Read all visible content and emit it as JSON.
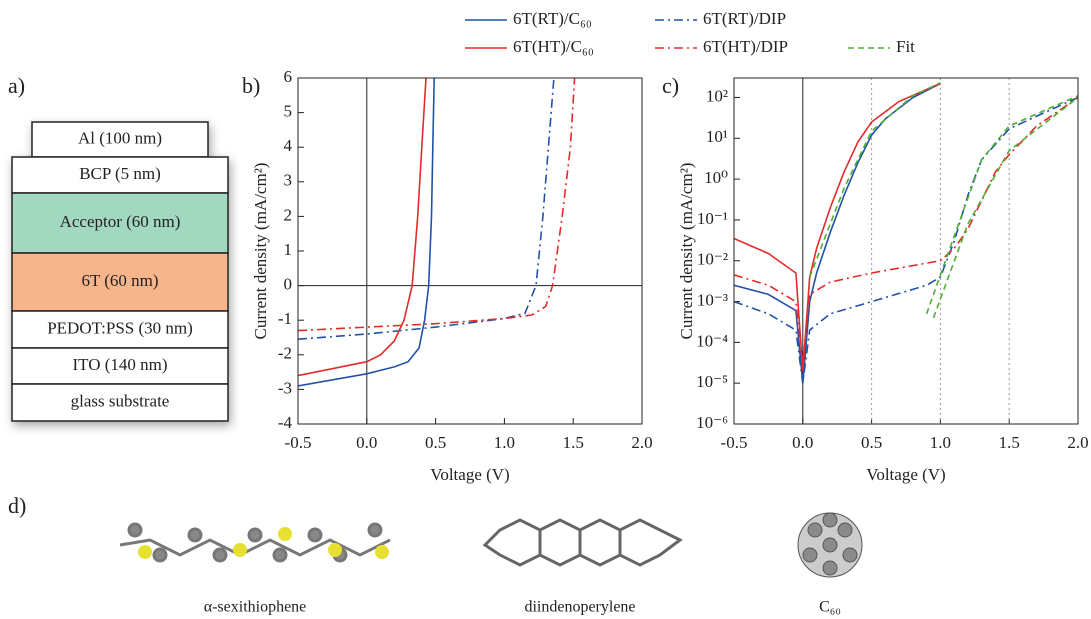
{
  "panel_labels": [
    "a)",
    "b)",
    "c)",
    "d)"
  ],
  "layers": [
    {
      "label": "Al (100 nm)",
      "color": "#ffffff"
    },
    {
      "label": "BCP (5 nm)",
      "color": "#ffffff"
    },
    {
      "label": "Acceptor (60 nm)",
      "color": "#a3d8c0"
    },
    {
      "label": "6T (60 nm)",
      "color": "#f7b58c"
    },
    {
      "label": "PEDOT:PSS (30 nm)",
      "color": "#ffffff"
    },
    {
      "label": "ITO (140 nm)",
      "color": "#ffffff"
    },
    {
      "label": "glass substrate",
      "color": "#ffffff"
    }
  ],
  "molecules": [
    "α-sexithiophene",
    "diindenoperylene",
    "C₆₀"
  ],
  "chart_data": [
    {
      "type": "line",
      "log_y": false,
      "zero_lines": true,
      "x_label": "Voltage (V)",
      "y_label": "Current density (mA/cm²)",
      "xlim": [
        -0.5,
        2.0
      ],
      "xticks": [
        -0.5,
        {
          "value": 0,
          "label": "0.0"
        },
        0.5,
        {
          "value": 1,
          "label": "1.0"
        },
        1.5,
        {
          "value": 2,
          "label": "2.0"
        }
      ],
      "ylim": [
        -4,
        6
      ],
      "yticks": [
        -4,
        -3,
        -2,
        -1,
        0,
        1,
        2,
        3,
        4,
        5,
        6
      ],
      "series": [
        {
          "name": "6T(RT)/C₆₀",
          "color": "#2152a8",
          "dash": "solid",
          "x": [
            -0.5,
            0,
            0.2,
            0.3,
            0.38,
            0.42,
            0.45,
            0.47,
            0.48,
            0.49
          ],
          "values": [
            -2.9,
            -2.55,
            -2.35,
            -2.2,
            -1.8,
            -1.0,
            0,
            2,
            4,
            6
          ]
        },
        {
          "name": "6T(RT)/DIP",
          "color": "#2152a8",
          "dash": "dashdot",
          "x": [
            -0.5,
            0,
            0.5,
            1.0,
            1.15,
            1.2,
            1.23,
            1.28,
            1.32,
            1.36
          ],
          "values": [
            -1.55,
            -1.4,
            -1.2,
            -0.95,
            -0.8,
            -0.3,
            0,
            2,
            4,
            6
          ]
        },
        {
          "name": "6T(HT)/C₆₀",
          "color": "#e52a2a",
          "dash": "solid",
          "x": [
            -0.5,
            0,
            0.1,
            0.2,
            0.27,
            0.33,
            0.37,
            0.4,
            0.43
          ],
          "values": [
            -2.6,
            -2.2,
            -2.0,
            -1.6,
            -1.0,
            0,
            2,
            4,
            6
          ]
        },
        {
          "name": "6T(HT)/DIP",
          "color": "#e52a2a",
          "dash": "dashdot",
          "x": [
            -0.5,
            0,
            0.5,
            1.0,
            1.2,
            1.3,
            1.35,
            1.42,
            1.48,
            1.51
          ],
          "values": [
            -1.3,
            -1.2,
            -1.1,
            -0.95,
            -0.85,
            -0.6,
            0,
            2,
            4,
            6
          ]
        }
      ]
    },
    {
      "type": "line",
      "log_y": true,
      "zero_lines": true,
      "x_grid": true,
      "x_label": "Voltage (V)",
      "y_label": "Current density (mA/cm²)",
      "xlim": [
        -0.5,
        2.0
      ],
      "xticks": [
        -0.5,
        {
          "value": 0,
          "label": "0.0"
        },
        0.5,
        {
          "value": 1,
          "label": "1.0"
        },
        1.5,
        {
          "value": 2,
          "label": "2.0"
        }
      ],
      "ylim": [
        1e-06,
        300
      ],
      "yticks": [
        {
          "value": 1e-06,
          "label": "10⁻⁶"
        },
        {
          "value": 1e-05,
          "label": "10⁻⁵"
        },
        {
          "value": 0.0001,
          "label": "10⁻⁴"
        },
        {
          "value": 0.001,
          "label": "10⁻³"
        },
        {
          "value": 0.01,
          "label": "10⁻²"
        },
        {
          "value": 0.1,
          "label": "10⁻¹"
        },
        {
          "value": 1,
          "label": "10⁰"
        },
        {
          "value": 10,
          "label": "10¹"
        },
        {
          "value": 100,
          "label": "10²"
        }
      ],
      "series": [
        {
          "name": "6T(RT)/C₆₀",
          "color": "#2152a8",
          "dash": "solid",
          "x": [
            -0.5,
            -0.25,
            -0.05,
            0,
            0.05,
            0.1,
            0.2,
            0.3,
            0.4,
            0.5,
            0.6,
            0.8,
            1.0
          ],
          "values": [
            0.0025,
            0.0015,
            0.0006,
            1e-05,
            0.001,
            0.005,
            0.05,
            0.4,
            2.5,
            12,
            30,
            100,
            220
          ]
        },
        {
          "name": "6T(RT)/DIP",
          "color": "#2152a8",
          "dash": "dashdot",
          "x": [
            -0.5,
            -0.25,
            -0.05,
            0,
            0.05,
            0.2,
            0.5,
            0.9,
            1.0,
            1.1,
            1.2,
            1.3,
            1.5,
            1.7,
            2.0
          ],
          "values": [
            0.001,
            0.0005,
            0.0002,
            1e-05,
            0.0002,
            0.0005,
            0.001,
            0.0025,
            0.004,
            0.03,
            0.4,
            3,
            17,
            35,
            100
          ]
        },
        {
          "name": "6T(HT)/C₆₀",
          "color": "#e52a2a",
          "dash": "solid",
          "x": [
            -0.5,
            -0.25,
            -0.05,
            0,
            0.05,
            0.1,
            0.2,
            0.3,
            0.4,
            0.5,
            0.7,
            1.0
          ],
          "values": [
            0.035,
            0.015,
            0.005,
            2e-05,
            0.004,
            0.02,
            0.2,
            1.5,
            8,
            25,
            80,
            220
          ]
        },
        {
          "name": "6T(HT)/DIP",
          "color": "#e52a2a",
          "dash": "dashdot",
          "x": [
            -0.5,
            -0.25,
            -0.05,
            0,
            0.05,
            0.2,
            0.5,
            1.0,
            1.1,
            1.2,
            1.3,
            1.4,
            1.5,
            1.7,
            2.0
          ],
          "values": [
            0.0045,
            0.0025,
            0.001,
            3e-05,
            0.0015,
            0.003,
            0.005,
            0.01,
            0.02,
            0.06,
            0.3,
            1.5,
            4,
            20,
            100
          ]
        },
        {
          "name": "Fit",
          "color": "#4cb034",
          "dash": "dashed",
          "x": [
            0.05,
            0.3,
            0.5,
            0.8,
            1.0,
            1.0,
            0.9,
            1.1,
            1.3,
            1.5,
            2.0,
            2.0,
            0.95,
            1.2,
            1.5,
            2.0
          ],
          "values": [
            0.004,
            0.6,
            15,
            110,
            230,
            null,
            0.0005,
            0.04,
            3,
            20,
            110,
            null,
            0.0004,
            0.08,
            5,
            100
          ]
        }
      ]
    }
  ]
}
